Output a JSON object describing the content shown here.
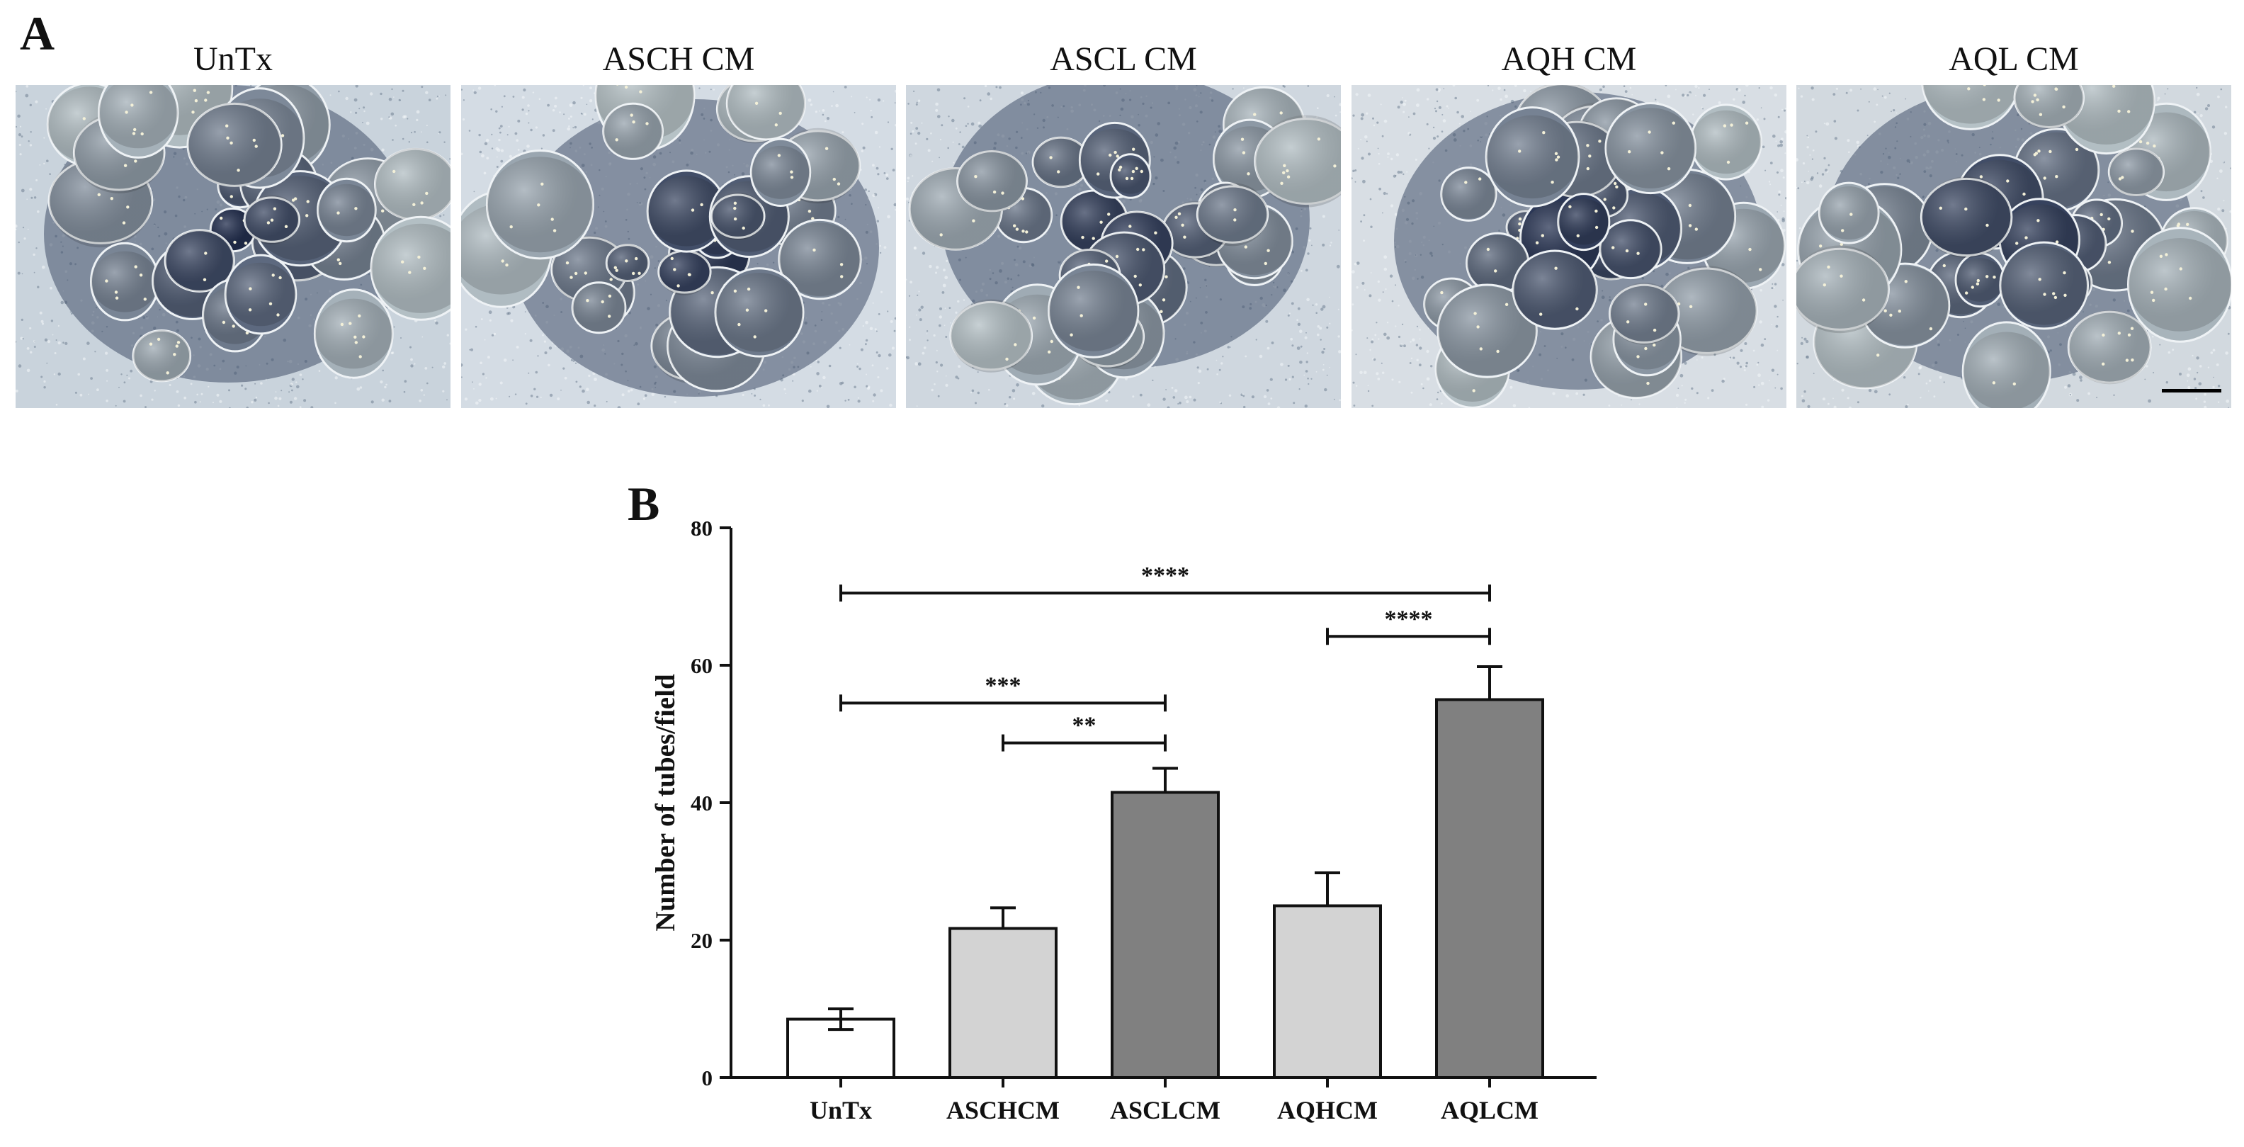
{
  "panel_a": {
    "letter": "A",
    "images": [
      {
        "label": "UnTx"
      },
      {
        "label": "ASCH CM"
      },
      {
        "label": "ASCL CM"
      },
      {
        "label": "AQH CM"
      },
      {
        "label": "AQL CM"
      }
    ]
  },
  "panel_b": {
    "letter": "B"
  },
  "chart_data": {
    "type": "bar",
    "title": "",
    "xlabel": "",
    "ylabel": "Number of tubes/field",
    "ylim": [
      0,
      80
    ],
    "yticks": [
      0,
      20,
      40,
      60,
      80
    ],
    "categories": [
      "UnTx",
      "ASCHCM",
      "ASCLCM",
      "AQHCM",
      "AQLCM"
    ],
    "values": [
      8.5,
      21.7,
      41.5,
      25.0,
      55.0
    ],
    "errors": [
      1.5,
      3.0,
      3.5,
      4.8,
      4.8
    ],
    "bar_colors": [
      "#ffffff",
      "#d3d3d3",
      "#808080",
      "#d3d3d3",
      "#808080"
    ],
    "grid": false,
    "significance": [
      {
        "from": "UnTx",
        "to": "AQLCM",
        "label": "****",
        "y": 70.5
      },
      {
        "from": "AQHCM",
        "to": "AQLCM",
        "label": "****",
        "y": 64.2
      },
      {
        "from": "UnTx",
        "to": "ASCLCM",
        "label": "***",
        "y": 54.5
      },
      {
        "from": "ASCHCM",
        "to": "ASCLCM",
        "label": "**",
        "y": 48.7
      }
    ]
  }
}
